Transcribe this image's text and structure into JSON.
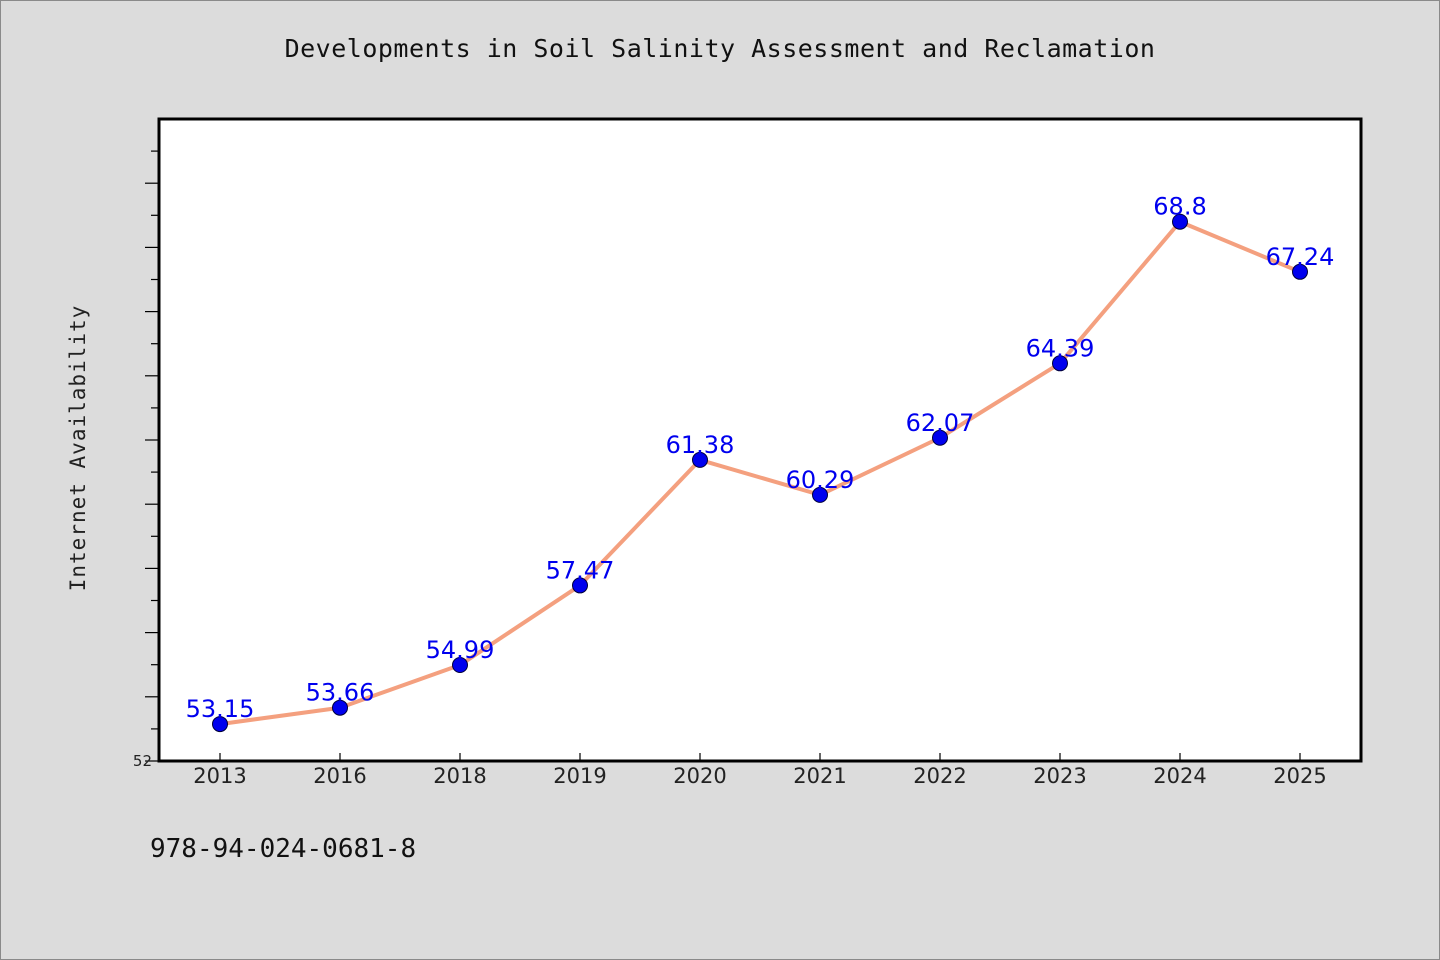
{
  "chart_data": {
    "type": "line",
    "title": "Developments in Soil Salinity Assessment and Reclamation",
    "ylabel": "Internet Availability",
    "xlabel": "",
    "categories": [
      "2013",
      "2016",
      "2018",
      "2019",
      "2020",
      "2021",
      "2022",
      "2023",
      "2024",
      "2025"
    ],
    "series": [
      {
        "values": [
          53.15,
          53.66,
          54.99,
          57.47,
          61.38,
          60.29,
          62.07,
          64.39,
          68.8,
          67.24
        ],
        "labels": [
          "53.15",
          "53.66",
          "54.99",
          "57.47",
          "61.38",
          "60.29",
          "62.07",
          "64.39",
          "68.8",
          "67.24"
        ]
      }
    ],
    "ylim": [
      52,
      72
    ],
    "ytick_labels": [
      "52"
    ],
    "grid": false,
    "line_color": "#f4a07f",
    "marker_color": "#0000ee",
    "label_color": "#0000ee"
  },
  "footer": {
    "text": "978-94-024-0681-8"
  }
}
